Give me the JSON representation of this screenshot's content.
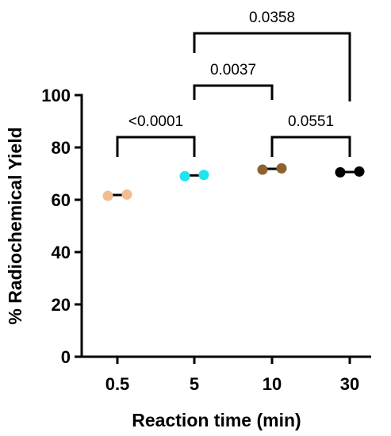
{
  "chart_data": {
    "type": "scatter",
    "xlabel": "Reaction time (min)",
    "ylabel": "% Radiochemical Yield",
    "ylim": [
      0,
      100
    ],
    "yticks": [
      0,
      20,
      40,
      60,
      80,
      100
    ],
    "categories": [
      "0.5",
      "5",
      "10",
      "30"
    ],
    "groups": [
      {
        "category": "0.5",
        "points": [
          61.5,
          62.0
        ],
        "mean": 61.8,
        "color": "#F2BD91"
      },
      {
        "category": "5",
        "points": [
          69.0,
          69.5
        ],
        "mean": 69.3,
        "color": "#1EE6EC"
      },
      {
        "category": "10",
        "points": [
          71.5,
          72.0
        ],
        "mean": 71.8,
        "color": "#8F6130"
      },
      {
        "category": "30",
        "points": [
          70.5,
          70.8
        ],
        "mean": 70.6,
        "color": "#000000"
      }
    ],
    "comparisons": [
      {
        "from": "0.5",
        "to": "5",
        "label": "<0.0001"
      },
      {
        "from": "10",
        "to": "30",
        "label": "0.0551"
      },
      {
        "from": "5",
        "to": "10",
        "label": "0.0037"
      },
      {
        "from": "5",
        "to": "30",
        "label": "0.0358"
      }
    ]
  }
}
